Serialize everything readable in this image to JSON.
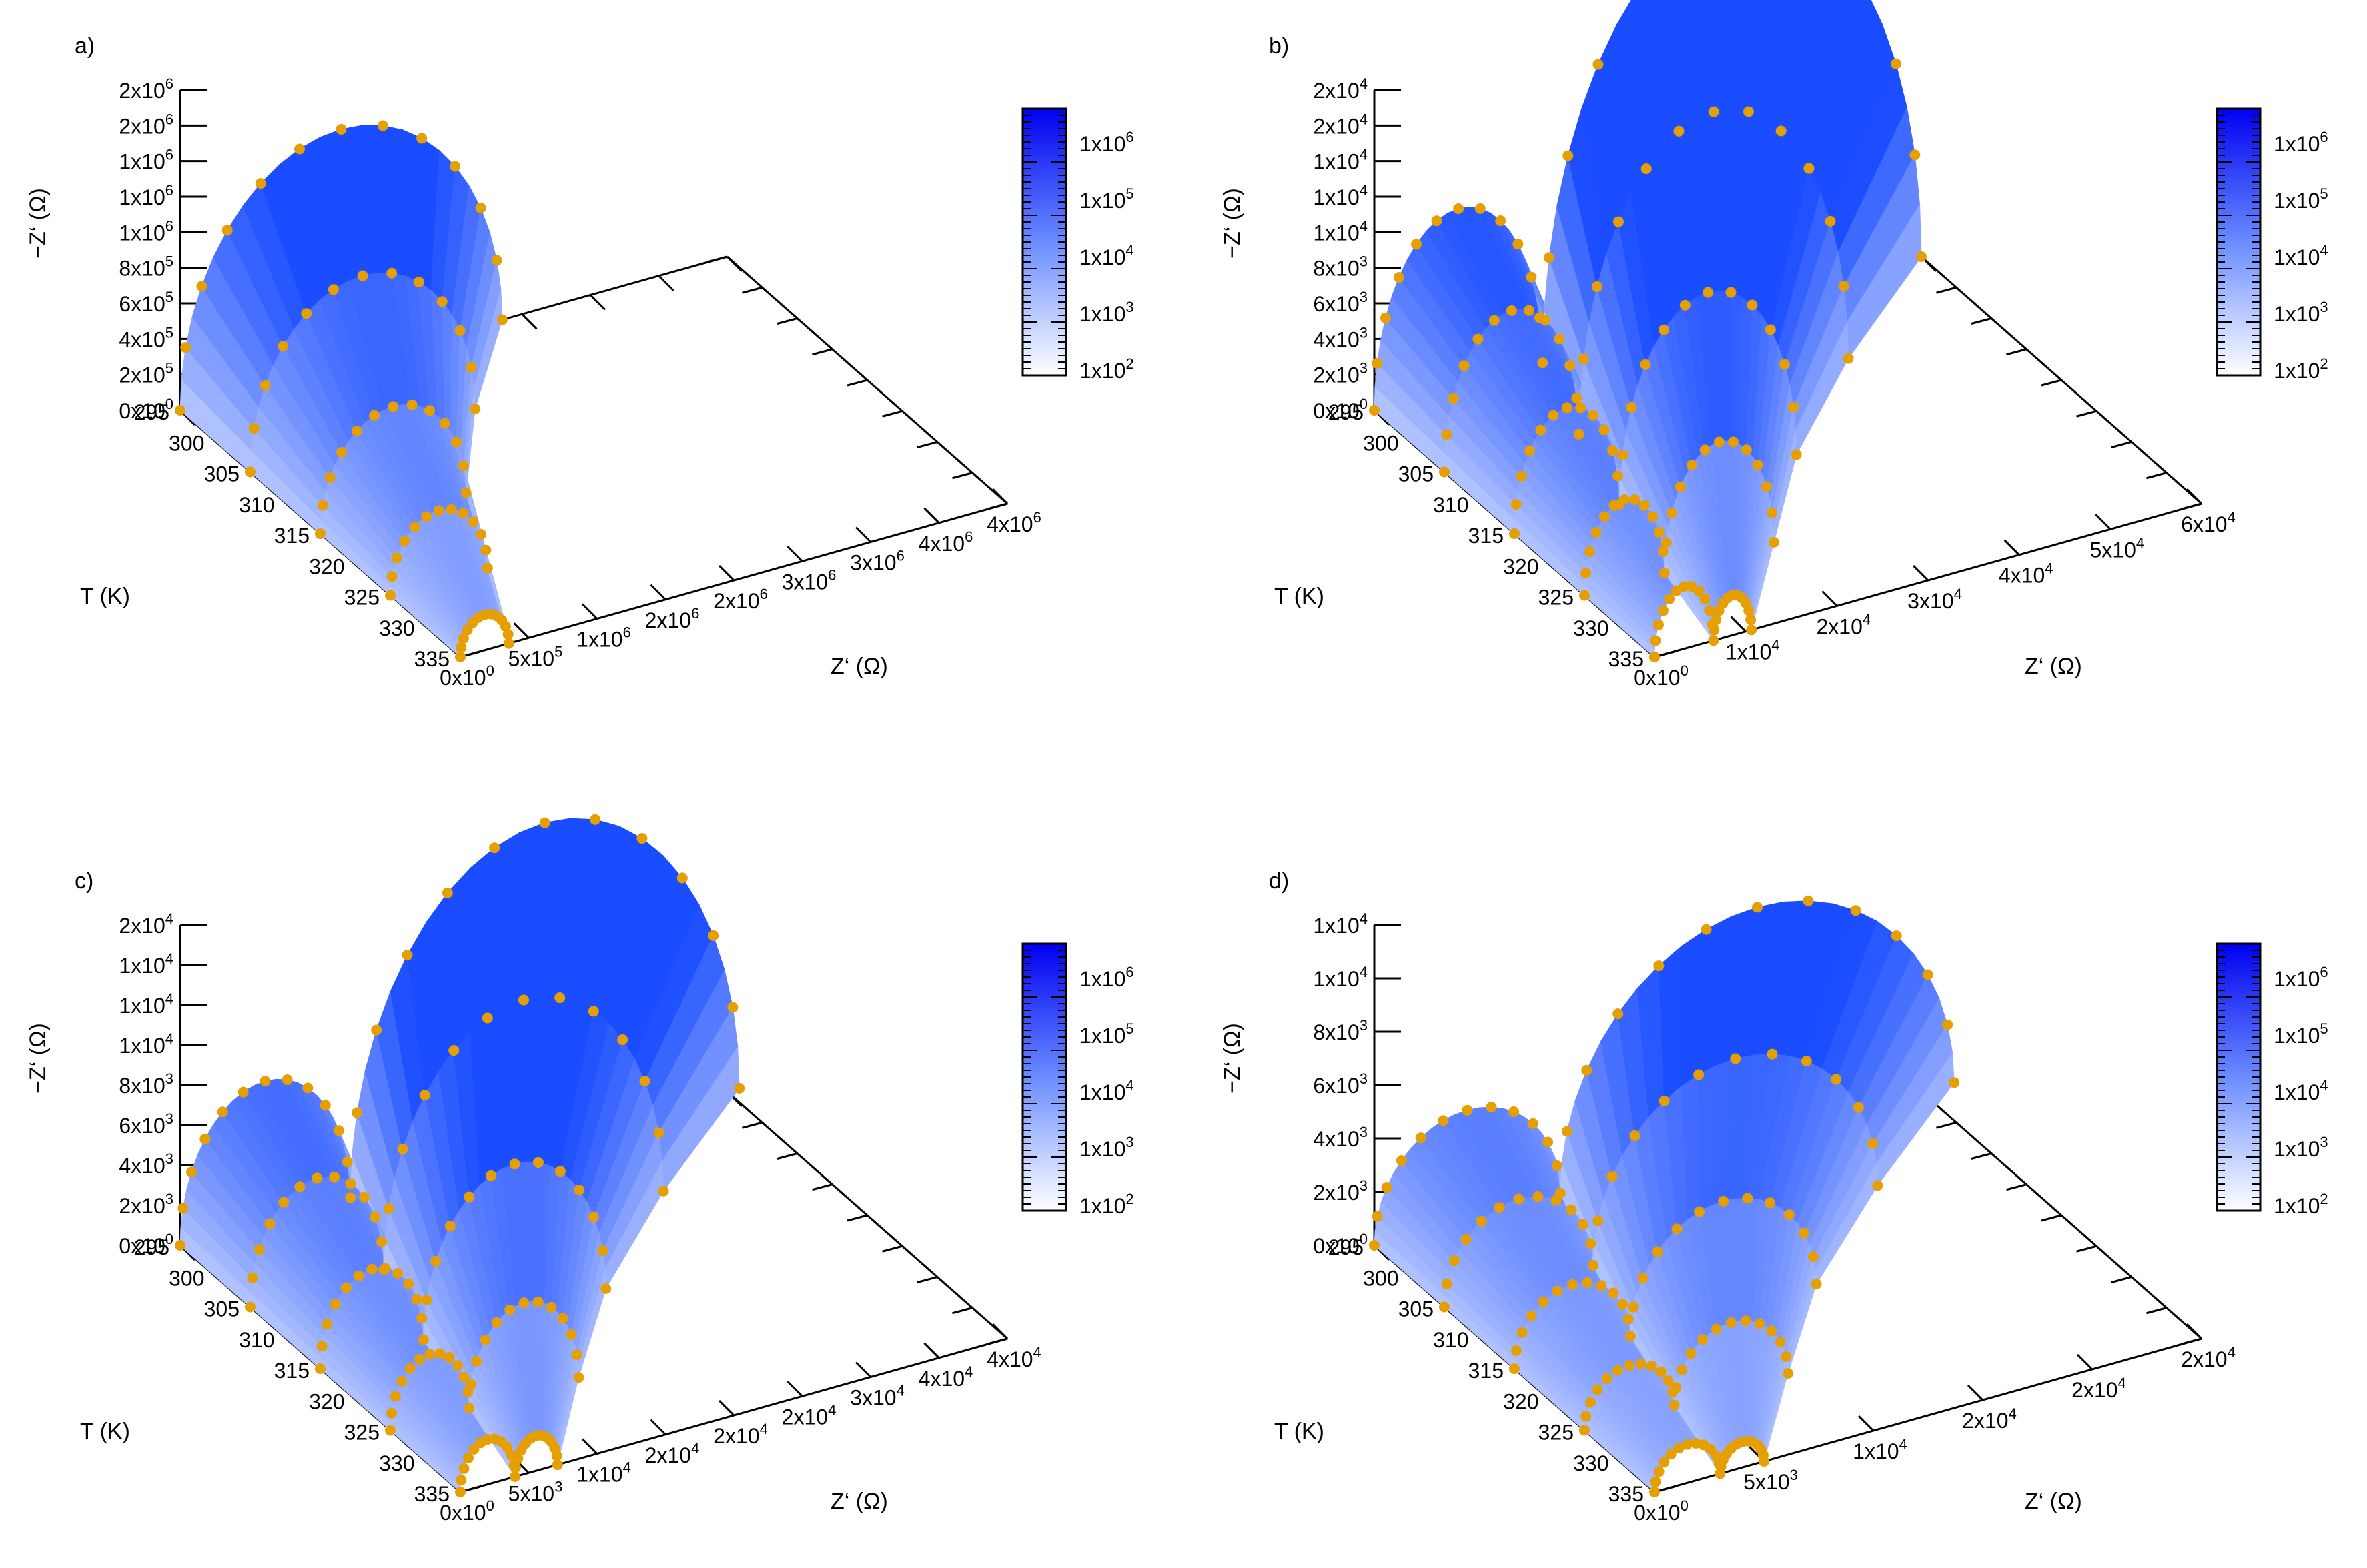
{
  "figure": {
    "colorscale": {
      "low_color": "#ffffff",
      "high_color": "#0000ff",
      "tick_labels": [
        {
          "base": "1x10",
          "exp": "6"
        },
        {
          "base": "1x10",
          "exp": "5"
        },
        {
          "base": "1x10",
          "exp": "4"
        },
        {
          "base": "1x10",
          "exp": "3"
        },
        {
          "base": "1x10",
          "exp": "2"
        }
      ]
    },
    "marker_color": "#e69f00",
    "surface_color": "#1a4dff"
  },
  "chart_data": [
    {
      "panel": "a)",
      "type": "scatter-3d-surface",
      "xlabel": "Z‘ (Ω)",
      "ylabel": "T (K)",
      "zlabel": "−Z‘ (Ω)",
      "x_ticks": [
        {
          "base": "0x10",
          "exp": "0"
        },
        {
          "base": "5x10",
          "exp": "5"
        },
        {
          "base": "1x10",
          "exp": "6"
        },
        {
          "base": "2x10",
          "exp": "6"
        },
        {
          "base": "2x10",
          "exp": "6"
        },
        {
          "base": "3x10",
          "exp": "6"
        },
        {
          "base": "3x10",
          "exp": "6"
        },
        {
          "base": "4x10",
          "exp": "6"
        },
        {
          "base": "4x10",
          "exp": "6"
        }
      ],
      "y_ticks": [
        "295",
        "300",
        "305",
        "310",
        "315",
        "320",
        "325",
        "330",
        "335"
      ],
      "z_ticks": [
        {
          "base": "0x10",
          "exp": "0"
        },
        {
          "base": "2x10",
          "exp": "5"
        },
        {
          "base": "4x10",
          "exp": "5"
        },
        {
          "base": "6x10",
          "exp": "5"
        },
        {
          "base": "8x10",
          "exp": "5"
        },
        {
          "base": "1x10",
          "exp": "6"
        },
        {
          "base": "1x10",
          "exp": "6"
        },
        {
          "base": "1x10",
          "exp": "6"
        },
        {
          "base": "2x10",
          "exp": "6"
        },
        {
          "base": "2x10",
          "exp": "6"
        }
      ],
      "xlim": [
        0,
        4500000
      ],
      "zlim": [
        0,
        1800000
      ],
      "temperatures": [
        295,
        305,
        315,
        325,
        335
      ],
      "arc_diameters": [
        2650000,
        1850000,
        1200000,
        800000,
        400000
      ],
      "second_arc_diameters": [
        0,
        0,
        0,
        0,
        0
      ]
    },
    {
      "panel": "b)",
      "type": "scatter-3d-surface",
      "xlabel": "Z‘ (Ω)",
      "ylabel": "T (K)",
      "zlabel": "−Z‘ (Ω)",
      "x_ticks": [
        {
          "base": "0x10",
          "exp": "0"
        },
        {
          "base": "1x10",
          "exp": "4"
        },
        {
          "base": "2x10",
          "exp": "4"
        },
        {
          "base": "3x10",
          "exp": "4"
        },
        {
          "base": "4x10",
          "exp": "4"
        },
        {
          "base": "5x10",
          "exp": "4"
        },
        {
          "base": "6x10",
          "exp": "4"
        }
      ],
      "y_ticks": [
        "295",
        "300",
        "305",
        "310",
        "315",
        "320",
        "325",
        "330",
        "335"
      ],
      "z_ticks": [
        {
          "base": "0x10",
          "exp": "0"
        },
        {
          "base": "2x10",
          "exp": "3"
        },
        {
          "base": "4x10",
          "exp": "3"
        },
        {
          "base": "6x10",
          "exp": "3"
        },
        {
          "base": "8x10",
          "exp": "3"
        },
        {
          "base": "1x10",
          "exp": "4"
        },
        {
          "base": "1x10",
          "exp": "4"
        },
        {
          "base": "1x10",
          "exp": "4"
        },
        {
          "base": "2x10",
          "exp": "4"
        },
        {
          "base": "2x10",
          "exp": "4"
        }
      ],
      "xlim": [
        0,
        65000
      ],
      "zlim": [
        0,
        18000
      ],
      "temperatures": [
        295,
        305,
        315,
        325,
        335
      ],
      "arc_diameters": [
        20000,
        16000,
        12500,
        9500,
        7000
      ],
      "second_arc_diameters": [
        45000,
        32000,
        21000,
        13000,
        4500
      ]
    },
    {
      "panel": "c)",
      "type": "scatter-3d-surface",
      "xlabel": "Z‘ (Ω)",
      "ylabel": "T (K)",
      "zlabel": "−Z‘ (Ω)",
      "x_ticks": [
        {
          "base": "0x10",
          "exp": "0"
        },
        {
          "base": "5x10",
          "exp": "3"
        },
        {
          "base": "1x10",
          "exp": "4"
        },
        {
          "base": "2x10",
          "exp": "4"
        },
        {
          "base": "2x10",
          "exp": "4"
        },
        {
          "base": "2x10",
          "exp": "4"
        },
        {
          "base": "3x10",
          "exp": "4"
        },
        {
          "base": "4x10",
          "exp": "4"
        },
        {
          "base": "4x10",
          "exp": "4"
        }
      ],
      "y_ticks": [
        "295",
        "300",
        "305",
        "310",
        "315",
        "320",
        "325",
        "330",
        "335"
      ],
      "z_ticks": [
        {
          "base": "0x10",
          "exp": "0"
        },
        {
          "base": "2x10",
          "exp": "3"
        },
        {
          "base": "4x10",
          "exp": "3"
        },
        {
          "base": "6x10",
          "exp": "3"
        },
        {
          "base": "8x10",
          "exp": "3"
        },
        {
          "base": "1x10",
          "exp": "4"
        },
        {
          "base": "1x10",
          "exp": "4"
        },
        {
          "base": "1x10",
          "exp": "4"
        },
        {
          "base": "2x10",
          "exp": "4"
        }
      ],
      "xlim": [
        0,
        45000
      ],
      "zlim": [
        0,
        16000
      ],
      "temperatures": [
        295,
        305,
        315,
        325,
        335
      ],
      "arc_diameters": [
        14000,
        11000,
        8500,
        6500,
        4500
      ],
      "second_arc_diameters": [
        32000,
        23000,
        15000,
        9000,
        3500
      ]
    },
    {
      "panel": "d)",
      "type": "scatter-3d-surface",
      "xlabel": "Z‘ (Ω)",
      "ylabel": "T (K)",
      "zlabel": "−Z‘ (Ω)",
      "x_ticks": [
        {
          "base": "0x10",
          "exp": "0"
        },
        {
          "base": "5x10",
          "exp": "3"
        },
        {
          "base": "1x10",
          "exp": "4"
        },
        {
          "base": "2x10",
          "exp": "4"
        },
        {
          "base": "2x10",
          "exp": "4"
        },
        {
          "base": "2x10",
          "exp": "4"
        }
      ],
      "y_ticks": [
        "295",
        "300",
        "305",
        "310",
        "315",
        "320",
        "325",
        "330",
        "335"
      ],
      "z_ticks": [
        {
          "base": "0x10",
          "exp": "0"
        },
        {
          "base": "2x10",
          "exp": "3"
        },
        {
          "base": "4x10",
          "exp": "3"
        },
        {
          "base": "6x10",
          "exp": "3"
        },
        {
          "base": "8x10",
          "exp": "3"
        },
        {
          "base": "1x10",
          "exp": "4"
        },
        {
          "base": "1x10",
          "exp": "4"
        }
      ],
      "xlim": [
        0,
        25000
      ],
      "zlim": [
        0,
        12500
      ],
      "temperatures": [
        295,
        305,
        315,
        325,
        335
      ],
      "arc_diameters": [
        8500,
        6800,
        5300,
        4100,
        3000
      ],
      "second_arc_diameters": [
        18000,
        13000,
        8500,
        5200,
        2000
      ]
    }
  ]
}
